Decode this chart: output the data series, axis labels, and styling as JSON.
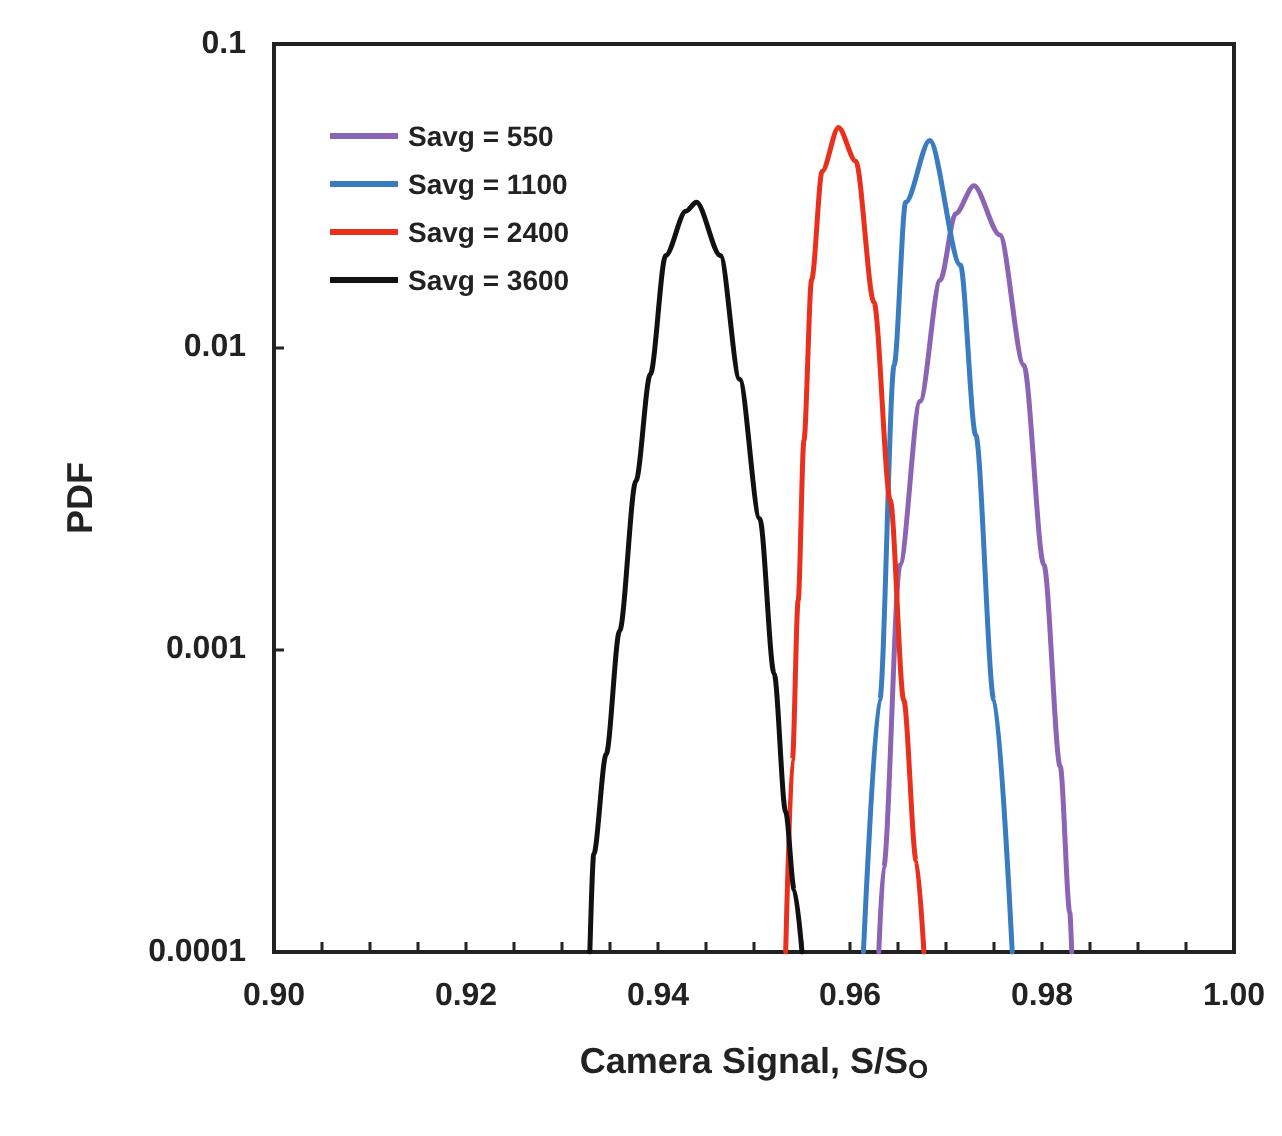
{
  "chart_data": {
    "type": "line",
    "xlabel": "Camera Signal, S/S$_{O}$",
    "ylabel": "PDF",
    "log": "y",
    "grid": false,
    "legend": "top left",
    "marker": "none",
    "line_style": "solid",
    "xlim": [
      0.9,
      1.0
    ],
    "xticks": [
      {
        "value": 0.9,
        "label": "0.90"
      },
      {
        "value": 0.905,
        "label": null
      },
      {
        "value": 0.91,
        "label": null
      },
      {
        "value": 0.915,
        "label": null
      },
      {
        "value": 0.92,
        "label": "0.92"
      },
      {
        "value": 0.925,
        "label": null
      },
      {
        "value": 0.93,
        "label": null
      },
      {
        "value": 0.935,
        "label": null
      },
      {
        "value": 0.94,
        "label": "0.94"
      },
      {
        "value": 0.945,
        "label": null
      },
      {
        "value": 0.95,
        "label": null
      },
      {
        "value": 0.955,
        "label": null
      },
      {
        "value": 0.96,
        "label": "0.96"
      },
      {
        "value": 0.965,
        "label": null
      },
      {
        "value": 0.97,
        "label": null
      },
      {
        "value": 0.975,
        "label": null
      },
      {
        "value": 0.98,
        "label": "0.98"
      },
      {
        "value": 0.985,
        "label": null
      },
      {
        "value": 0.99,
        "label": null
      },
      {
        "value": 0.995,
        "label": null
      },
      {
        "value": 1.0,
        "label": "1.00"
      }
    ],
    "ylim": [
      0.0001,
      0.1
    ],
    "yticks": [
      0.0001,
      0.001,
      0.01,
      0.1
    ],
    "series": [
      {
        "name": "Savg = 550",
        "color": "#8c64b4",
        "x": [
          0.963,
          0.9635,
          0.9652,
          0.9673,
          0.9694,
          0.971,
          0.9729,
          0.9756,
          0.9781,
          0.9802,
          0.9819,
          0.9829,
          0.9831
        ],
        "values": [
          0.0001,
          0.00019,
          0.0019,
          0.0066,
          0.0166,
          0.0275,
          0.034,
          0.0234,
          0.0087,
          0.0019,
          0.00041,
          0.000135,
          0.0001
        ]
      },
      {
        "name": "Savg = 1100",
        "color": "#3a7cc0",
        "x": [
          0.9614,
          0.9631,
          0.9646,
          0.9658,
          0.9683,
          0.9715,
          0.9731,
          0.975,
          0.9769
        ],
        "values": [
          0.0001,
          0.00068,
          0.0087,
          0.03,
          0.048,
          0.0186,
          0.0051,
          0.00068,
          0.0001
        ]
      },
      {
        "name": "Savg = 2400",
        "color": "#e8301c",
        "x": [
          0.9533,
          0.954,
          0.9546,
          0.9552,
          0.956,
          0.9571,
          0.9588,
          0.9606,
          0.9625,
          0.9642,
          0.9656,
          0.9669,
          0.9677
        ],
        "values": [
          0.0001,
          0.00043,
          0.00145,
          0.0049,
          0.0166,
          0.038,
          0.053,
          0.041,
          0.014,
          0.0031,
          0.00068,
          0.0002,
          0.0001
        ]
      },
      {
        "name": "Savg = 3600",
        "color": "#111111",
        "x": [
          0.9329,
          0.9333,
          0.9346,
          0.936,
          0.9377,
          0.9392,
          0.9408,
          0.9429,
          0.944,
          0.9465,
          0.9485,
          0.9506,
          0.9521,
          0.9533,
          0.9542,
          0.955
        ],
        "values": [
          0.0001,
          0.00021,
          0.00045,
          0.00115,
          0.0036,
          0.0081,
          0.02,
          0.028,
          0.03,
          0.02,
          0.0078,
          0.0027,
          0.00083,
          0.00029,
          0.00016,
          0.0001
        ]
      }
    ]
  }
}
